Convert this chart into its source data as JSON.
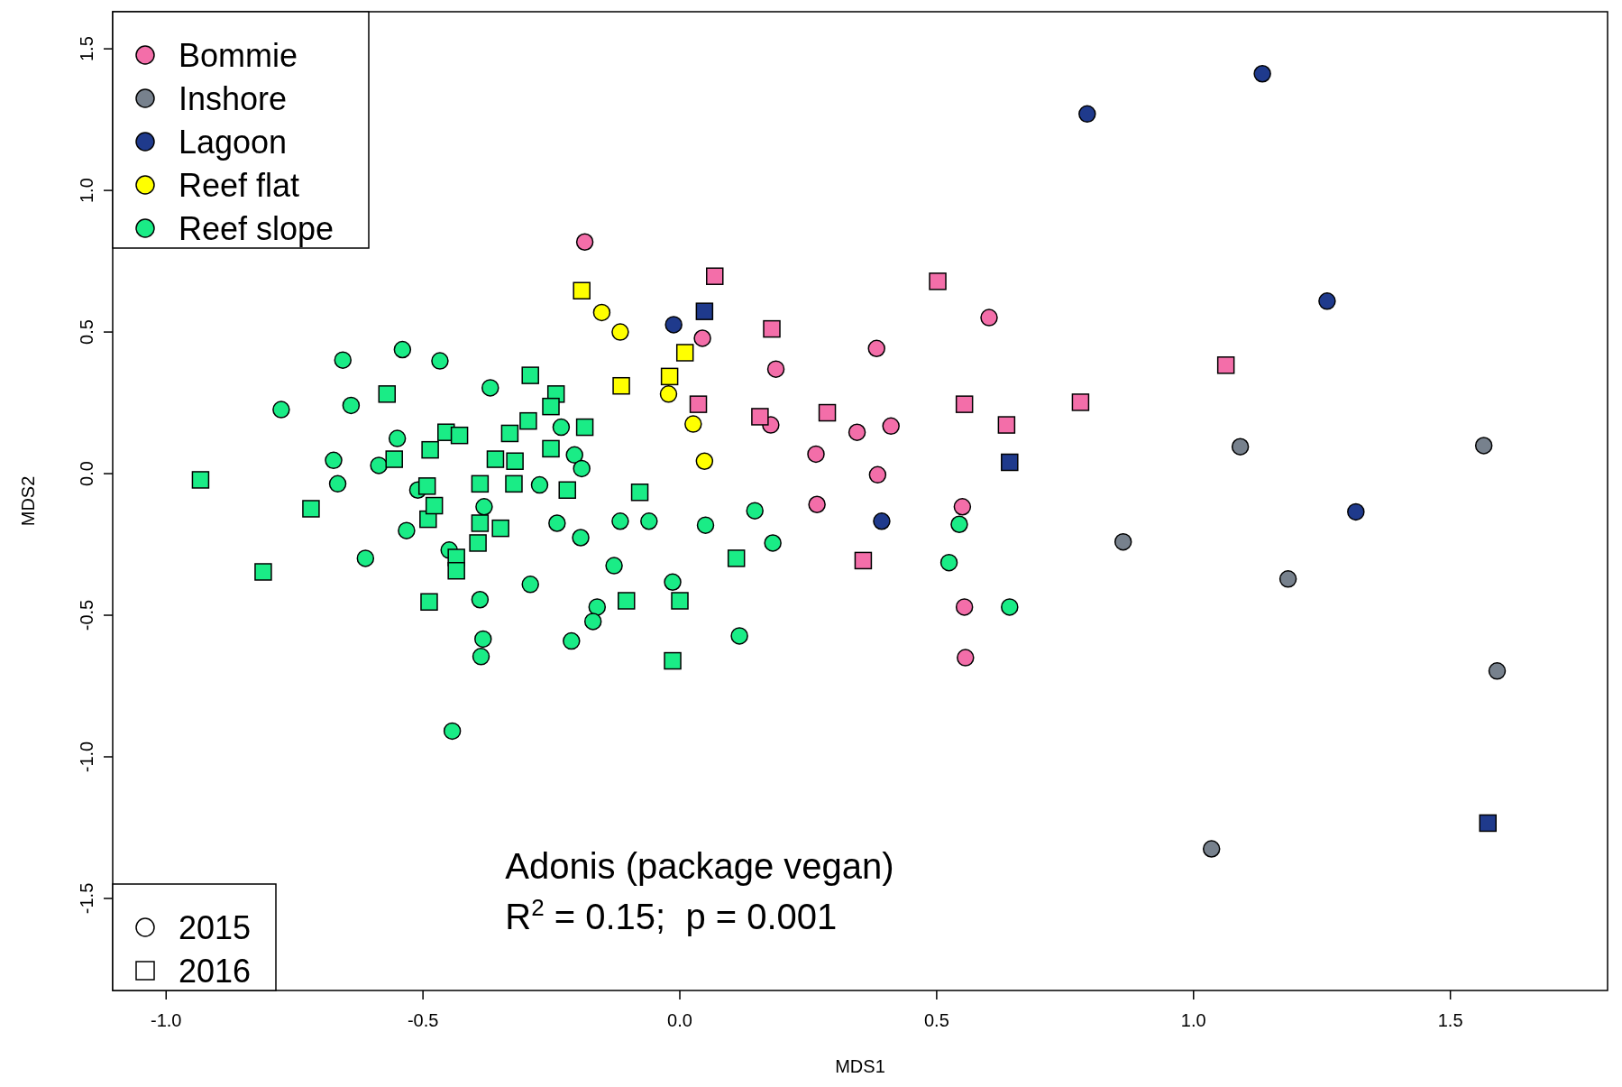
{
  "chart_data": {
    "type": "scatter",
    "xlabel": "MDS1",
    "ylabel": "MDS2",
    "xlim": [
      -1.104,
      1.806
    ],
    "ylim": [
      -1.825,
      1.631
    ],
    "xticks": [
      {
        "value": -1,
        "label": "-1.0"
      },
      {
        "value": -0.5,
        "label": "-0.5"
      },
      {
        "value": 0,
        "label": "0.0"
      },
      {
        "value": 0.5,
        "label": "0.5"
      },
      {
        "value": 1,
        "label": "1.0"
      },
      {
        "value": 1.5,
        "label": "1.5"
      }
    ],
    "yticks": [
      {
        "value": -1.5,
        "label": "-1.5"
      },
      {
        "value": -1,
        "label": "-1.0"
      },
      {
        "value": -0.5,
        "label": "-0.5"
      },
      {
        "value": 0,
        "label": "0.0"
      },
      {
        "value": 0.5,
        "label": "0.5"
      },
      {
        "value": 1,
        "label": "1.0"
      },
      {
        "value": 1.5,
        "label": "1.5"
      }
    ],
    "grid": false,
    "legend": "left",
    "annotations": [
      "Adonis (package vegan)",
      "R$^{2}$ = 0.15;  p = 0.001"
    ],
    "series": [
      {
        "name": "Bommie",
        "color": "#f36ea9",
        "marker": "circle",
        "x": [
          -0.185,
          0.044,
          0.187,
          0.602,
          0.383,
          0.177,
          0.345,
          0.411,
          0.265,
          0.385,
          0.267,
          0.55,
          0.554,
          0.556
        ],
        "values": [
          0.818,
          0.478,
          0.369,
          0.551,
          0.442,
          0.172,
          0.146,
          0.168,
          0.069,
          -0.004,
          -0.109,
          -0.117,
          -0.471,
          -0.65
        ]
      },
      {
        "name": "Inshore",
        "color": "#77818d",
        "marker": "circle",
        "x": [
          1.091,
          1.565,
          0.863,
          1.184,
          1.591,
          1.035
        ],
        "values": [
          0.095,
          0.099,
          -0.241,
          -0.372,
          -0.697,
          -1.325
        ]
      },
      {
        "name": "Lagoon",
        "color": "#1f3a8c",
        "marker": "circle",
        "x": [
          1.134,
          0.793,
          1.26,
          -0.012,
          0.393,
          1.316
        ],
        "values": [
          1.412,
          1.27,
          0.609,
          0.526,
          -0.168,
          -0.135
        ]
      },
      {
        "name": "Reef flat",
        "color": "#ffff00",
        "marker": "circle",
        "x": [
          -0.152,
          -0.116,
          -0.022,
          0.026,
          0.048
        ],
        "values": [
          0.569,
          0.5,
          0.281,
          0.175,
          0.044
        ]
      },
      {
        "name": "Reef slope",
        "color": "#1aec86",
        "marker": "circle",
        "x": [
          -0.776,
          -0.656,
          -0.54,
          -0.467,
          -0.64,
          -0.369,
          -0.55,
          -0.586,
          -0.674,
          -0.666,
          -0.51,
          -0.532,
          -0.612,
          -0.449,
          -0.381,
          -0.389,
          -0.383,
          -0.387,
          -0.443,
          -0.231,
          -0.205,
          -0.191,
          -0.273,
          -0.239,
          -0.193,
          -0.291,
          -0.161,
          -0.169,
          -0.211,
          -0.128,
          -0.116,
          -0.06,
          0.05,
          -0.014,
          0.146,
          0.181,
          0.116,
          0.524,
          0.544,
          0.642
        ],
        "values": [
          0.226,
          0.401,
          0.438,
          0.398,
          0.241,
          0.303,
          0.124,
          0.029,
          0.047,
          -0.036,
          -0.058,
          -0.201,
          -0.299,
          -0.27,
          -0.117,
          -0.445,
          -0.584,
          -0.646,
          -0.909,
          0.164,
          0.066,
          0.018,
          -0.04,
          -0.175,
          -0.226,
          -0.391,
          -0.471,
          -0.522,
          -0.591,
          -0.325,
          -0.168,
          -0.168,
          -0.182,
          -0.383,
          -0.131,
          -0.245,
          -0.573,
          -0.314,
          -0.179,
          -0.471
        ]
      },
      {
        "color": "#f36ea9",
        "marker": "square",
        "x": [
          0.068,
          0.179,
          0.502,
          1.063,
          0.036,
          0.156,
          0.287,
          0.554,
          0.636,
          0.78,
          0.357
        ],
        "values": [
          0.697,
          0.511,
          0.679,
          0.383,
          0.245,
          0.201,
          0.215,
          0.245,
          0.172,
          0.252,
          -0.307
        ]
      },
      {
        "color": "#1f3a8c",
        "marker": "square",
        "x": [
          0.048,
          0.642,
          1.573
        ],
        "values": [
          0.573,
          0.04,
          -1.234
        ]
      },
      {
        "color": "#ffff00",
        "marker": "square",
        "x": [
          -0.191,
          0.01,
          -0.02,
          -0.114
        ],
        "values": [
          0.646,
          0.427,
          0.343,
          0.31
        ]
      },
      {
        "color": "#1aec86",
        "marker": "square",
        "x": [
          -0.933,
          -0.811,
          -0.718,
          -0.57,
          -0.556,
          -0.486,
          -0.492,
          -0.49,
          -0.478,
          -0.488,
          -0.455,
          -0.429,
          -0.435,
          -0.435,
          -0.389,
          -0.389,
          -0.393,
          -0.359,
          -0.349,
          -0.331,
          -0.321,
          -0.323,
          -0.295,
          -0.291,
          -0.241,
          -0.251,
          -0.251,
          -0.219,
          -0.185,
          -0.078,
          0.11,
          -0.104,
          0,
          -0.014
        ],
        "values": [
          -0.022,
          -0.347,
          -0.124,
          0.281,
          0.051,
          0.084,
          -0.044,
          -0.161,
          -0.113,
          -0.453,
          0.146,
          0.135,
          -0.296,
          -0.343,
          -0.036,
          -0.175,
          -0.245,
          0.051,
          -0.193,
          0.142,
          0.044,
          -0.036,
          0.186,
          0.347,
          0.281,
          0.237,
          0.088,
          -0.058,
          0.164,
          -0.066,
          -0.299,
          -0.449,
          -0.449,
          -0.661
        ]
      },
      {
        "name": "2015",
        "color": "#ffffff",
        "marker": "circle"
      },
      {
        "name": "2016",
        "color": "#ffffff",
        "marker": "square"
      }
    ]
  }
}
